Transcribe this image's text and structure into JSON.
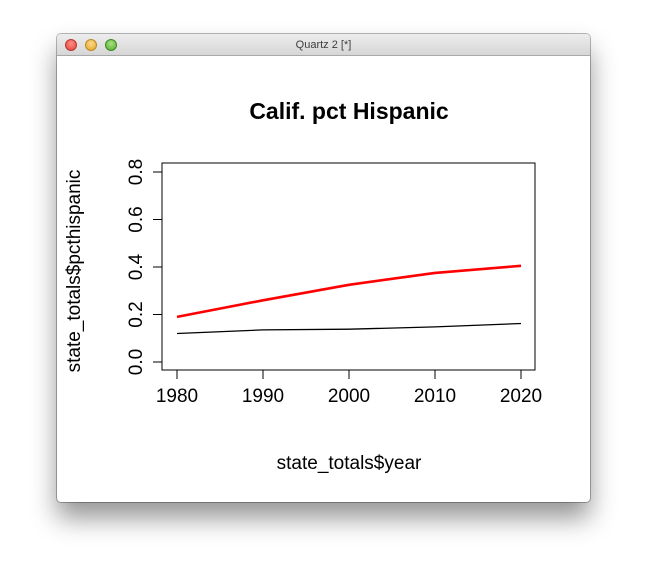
{
  "window": {
    "title": "Quartz 2 [*]"
  },
  "chart_data": {
    "type": "line",
    "title": "Calif. pct Hispanic",
    "xlabel": "state_totals$year",
    "ylabel": "state_totals$pcthispanic",
    "xlim": [
      1980,
      2020
    ],
    "ylim": [
      0.0,
      0.8
    ],
    "x_ticks": [
      1980,
      1990,
      2000,
      2010,
      2020
    ],
    "y_ticks": [
      "0.0",
      "0.2",
      "0.4",
      "0.6",
      "0.8"
    ],
    "x": [
      1980,
      1990,
      2000,
      2010,
      2020
    ],
    "grid": false,
    "series": [
      {
        "values": [
          0.19,
          0.26,
          0.325,
          0.375,
          0.405
        ],
        "color": "#ff0000"
      },
      {
        "values": [
          0.12,
          0.135,
          0.138,
          0.148,
          0.162
        ],
        "color": "#000000"
      }
    ]
  }
}
